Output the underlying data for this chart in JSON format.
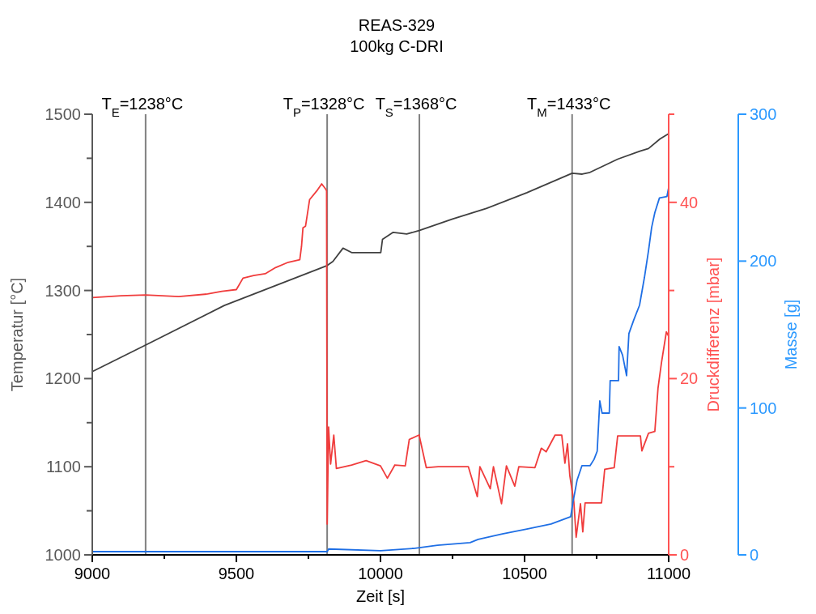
{
  "chart_data": {
    "type": "line",
    "title": "REAS-329",
    "subtitle": "100kg C-DRI",
    "xlabel": "Zeit [s]",
    "ylabel": "Temperatur [°C]",
    "y2label": "Druckdifferenz [mbar]",
    "y3label": "Masse [g]",
    "xlim": [
      9000,
      11000
    ],
    "xticks": [
      9000,
      {
        "value": 9250,
        "label": null
      },
      9500,
      {
        "value": 9750,
        "label": null
      },
      10000,
      {
        "value": 10250,
        "label": null
      },
      10500,
      {
        "value": 10750,
        "label": null
      },
      11000
    ],
    "ylim": [
      1000,
      1500
    ],
    "yticks": [
      1000,
      {
        "value": 1050,
        "label": null
      },
      1100,
      {
        "value": 1150,
        "label": null
      },
      1200,
      {
        "value": 1250,
        "label": null
      },
      1300,
      {
        "value": 1350,
        "label": null
      },
      1400,
      {
        "value": 1450,
        "label": null
      },
      1500
    ],
    "y2lim": [
      0,
      50
    ],
    "y2ticks": [
      0,
      {
        "value": 10,
        "label": null
      },
      20,
      {
        "value": 30,
        "label": null
      },
      40,
      {
        "value": 50,
        "label": null
      }
    ],
    "y3lim": [
      0,
      300
    ],
    "y3ticks": [
      0,
      100,
      200,
      300
    ],
    "grid": false,
    "marker": "none",
    "line_style": "solid",
    "ref_lines": [
      {
        "axis": "x",
        "value": 9185,
        "color": "#808080"
      },
      {
        "axis": "x",
        "value": 9815,
        "color": "#808080"
      },
      {
        "axis": "x",
        "value": 10135,
        "color": "#808080"
      },
      {
        "axis": "x",
        "value": 10665,
        "color": "#808080"
      }
    ],
    "annotations": [
      "T$_{E}$=1238°C",
      "T$_{P}$=1328°C",
      "T$_{S}$=1368°C",
      "T$_{M}$=1433°C"
    ],
    "series": [
      {
        "color": "#404040",
        "x": [
          9000,
          9185,
          9458,
          9813,
          9835,
          9870,
          9900,
          10001,
          10007,
          10044,
          10091,
          10134,
          10250,
          10367,
          10508,
          10665,
          10700,
          10727,
          10823,
          10900,
          10930,
          10970,
          11000
        ],
        "values": [
          1208,
          1238,
          1283,
          1328,
          1333,
          1348,
          1343,
          1343,
          1358,
          1366,
          1364,
          1368,
          1381,
          1393,
          1411,
          1433,
          1432,
          1434,
          1449,
          1458,
          1461,
          1472,
          1478
        ]
      },
      {
        "color": "#f03c3c",
        "axis": "y2",
        "x": [
          9000,
          9100,
          9185,
          9300,
          9400,
          9450,
          9500,
          9523,
          9560,
          9600,
          9636,
          9680,
          9720,
          9726,
          9731,
          9740,
          9754,
          9779,
          9796,
          9810,
          9813,
          9815,
          9820,
          9827,
          9838,
          9847,
          9900,
          9950,
          10000,
          10024,
          10050,
          10086,
          10100,
          10134,
          10159,
          10200,
          10305,
          10336,
          10345,
          10381,
          10392,
          10420,
          10437,
          10466,
          10480,
          10536,
          10558,
          10575,
          10606,
          10629,
          10640,
          10649,
          10657,
          10671,
          10679,
          10694,
          10702,
          10710,
          10767,
          10778,
          10811,
          10823,
          10860,
          10902,
          10907,
          10930,
          10952,
          10963,
          10975,
          10992,
          11000
        ],
        "values": [
          29.2,
          29.4,
          29.5,
          29.3,
          29.6,
          29.9,
          30.1,
          31.4,
          31.7,
          31.9,
          32.6,
          33.2,
          33.5,
          35,
          37.1,
          37.3,
          40.3,
          41.3,
          42.1,
          41.5,
          41.3,
          3.5,
          14.5,
          10.3,
          13.6,
          9.8,
          10.2,
          10.7,
          10.1,
          8.7,
          10.2,
          10.1,
          13.1,
          13.6,
          9.9,
          10,
          10,
          6.6,
          10,
          7.5,
          10,
          5.8,
          10.1,
          7.8,
          10,
          9.9,
          12.1,
          11.7,
          13.6,
          13.6,
          10.4,
          12.6,
          9.0,
          6.0,
          2.0,
          5.8,
          2.6,
          5.9,
          5.9,
          9.7,
          9.9,
          13.5,
          13.5,
          13.5,
          11.8,
          13.8,
          14.0,
          18.9,
          21.8,
          25.3,
          24.8
        ]
      },
      {
        "color": "#1f6fe5",
        "axis": "y3",
        "x": [
          9000,
          9400,
          9815,
          9820,
          10000,
          10114,
          10198,
          10311,
          10339,
          10423,
          10508,
          10592,
          10660,
          10668,
          10682,
          10699,
          10727,
          10741,
          10752,
          10761,
          10769,
          10794,
          10797,
          10826,
          10828,
          10840,
          10854,
          10862,
          10879,
          10899,
          10916,
          10930,
          10941,
          10952,
          10968,
          10994,
          11000
        ],
        "values": [
          2.2,
          2.2,
          2.2,
          4,
          2.8,
          4.4,
          6.6,
          8.3,
          10.5,
          14.3,
          17.6,
          21,
          26,
          35.9,
          50.7,
          60.7,
          60.7,
          65,
          70.6,
          104.8,
          96.5,
          96.5,
          118.6,
          118.6,
          141.8,
          136,
          122,
          150.6,
          160,
          170,
          189,
          207,
          223,
          233,
          243,
          244,
          250
        ]
      }
    ]
  }
}
